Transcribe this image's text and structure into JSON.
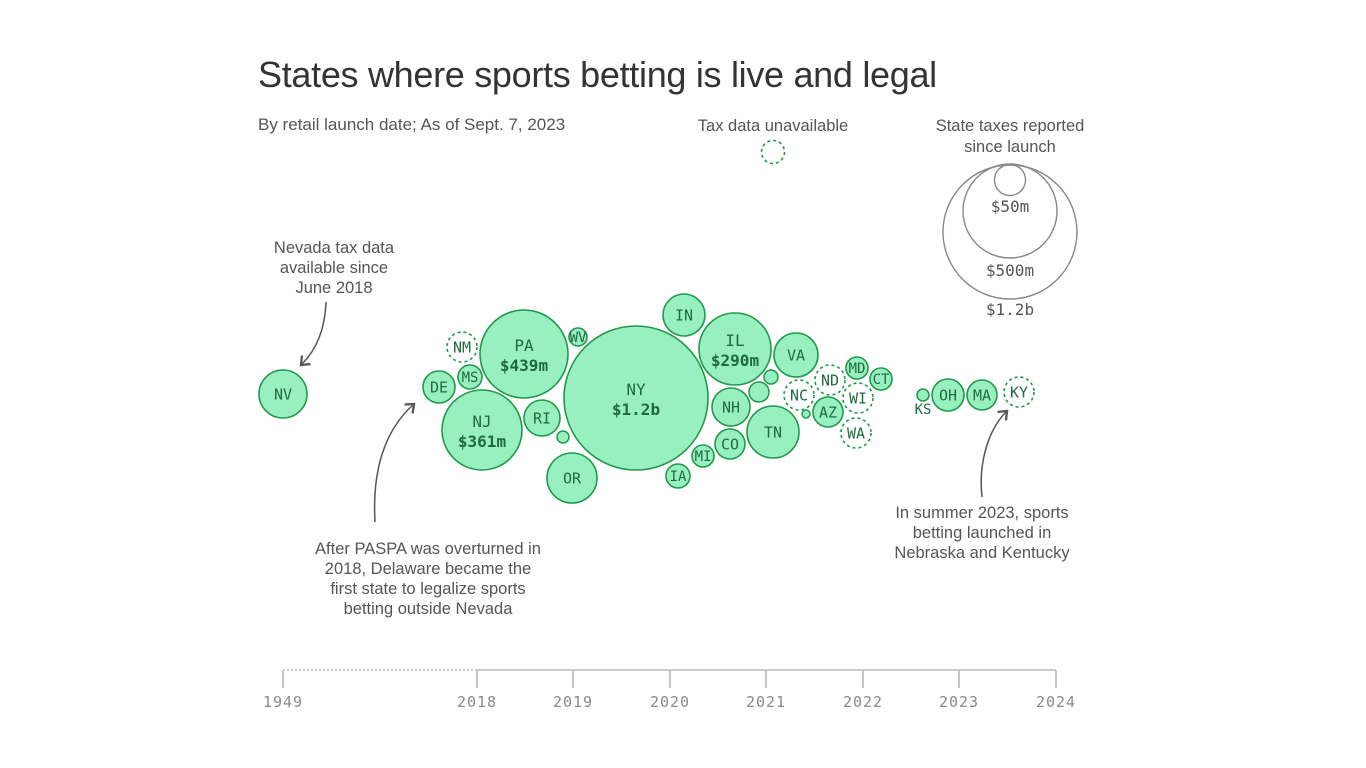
{
  "title": "States where sports betting is live and legal",
  "subtitle": "By retail launch date; As of Sept. 7, 2023",
  "legend": {
    "unavailable_label": "Tax data unavailable",
    "size_title_line1": "State taxes reported",
    "size_title_line2": "since launch",
    "size_values": [
      "$50m",
      "$500m",
      "$1.2b"
    ]
  },
  "annotations": {
    "nevada": [
      "Nevada tax data",
      "available since",
      "June 2018"
    ],
    "paspa": [
      "After PASPA was overturned in",
      "2018, Delaware became the",
      "first state to legalize sports",
      "betting outside Nevada"
    ],
    "summer": [
      "In summer 2023, sports",
      "betting launched in",
      "Nebraska and Kentucky"
    ]
  },
  "colors": {
    "fill": "#98efbf",
    "stroke": "#1e9a4a",
    "text": "#1f6b3e",
    "axis": "#bbbbbb",
    "annotation": "#555555"
  },
  "chart_data": {
    "type": "scatter",
    "title": "States where sports betting is live and legal",
    "subtitle": "By retail launch date; As of Sept. 7, 2023",
    "x_axis_ticks": [
      "1949",
      "2018",
      "2019",
      "2020",
      "2021",
      "2022",
      "2023",
      "2024"
    ],
    "size_encoding": "State taxes reported since launch",
    "size_legend_values": [
      "$50m",
      "$500m",
      "$1.2b"
    ],
    "points": [
      {
        "state": "NV",
        "label": "NV",
        "launch": 1949,
        "tax_data": true
      },
      {
        "state": "DE",
        "label": "DE",
        "launch": 2018.45,
        "tax_data": true
      },
      {
        "state": "NM",
        "label": "NM",
        "launch": 2018.8,
        "tax_data": false
      },
      {
        "state": "MS",
        "label": "MS",
        "launch": 2018.6,
        "tax_data": true
      },
      {
        "state": "NJ",
        "label": "NJ",
        "value_label": "$361m",
        "launch": 2018.5,
        "tax_data": true,
        "tax_m": 361
      },
      {
        "state": "PA",
        "label": "PA",
        "value_label": "$439m",
        "launch": 2018.9,
        "tax_data": true,
        "tax_m": 439
      },
      {
        "state": "WV",
        "label": "WV",
        "launch": 2018.7,
        "tax_data": true
      },
      {
        "state": "RI",
        "label": "RI",
        "launch": 2018.9,
        "tax_data": true
      },
      {
        "state": "OR",
        "label": "OR",
        "launch": 2019.6,
        "tax_data": true
      },
      {
        "state": "NY",
        "label": "NY",
        "value_label": "$1.2b",
        "launch": 2019.6,
        "tax_data": true,
        "tax_m": 1200
      },
      {
        "state": "IN",
        "label": "IN",
        "launch": 2019.7,
        "tax_data": true
      },
      {
        "state": "IA",
        "label": "IA",
        "launch": 2019.6,
        "tax_data": true
      },
      {
        "state": "MI",
        "label": "MI",
        "launch": 2020.2,
        "tax_data": true
      },
      {
        "state": "IL",
        "label": "IL",
        "value_label": "$290m",
        "launch": 2020.2,
        "tax_data": true,
        "tax_m": 290
      },
      {
        "state": "NH",
        "label": "NH",
        "launch": 2020.0,
        "tax_data": true
      },
      {
        "state": "CO",
        "label": "CO",
        "launch": 2020.4,
        "tax_data": true
      },
      {
        "state": "TN",
        "label": "TN",
        "launch": 2020.8,
        "tax_data": true
      },
      {
        "state": "VA",
        "label": "VA",
        "launch": 2021.1,
        "tax_data": true
      },
      {
        "state": "NC",
        "label": "NC",
        "launch": 2021.2,
        "tax_data": false
      },
      {
        "state": "ND",
        "label": "ND",
        "launch": 2021.5,
        "tax_data": false
      },
      {
        "state": "AZ",
        "label": "AZ",
        "launch": 2021.7,
        "tax_data": true
      },
      {
        "state": "WI",
        "label": "WI",
        "launch": 2021.9,
        "tax_data": false
      },
      {
        "state": "WA",
        "label": "WA",
        "launch": 2021.9,
        "tax_data": false
      },
      {
        "state": "MD",
        "label": "MD",
        "launch": 2021.9,
        "tax_data": true
      },
      {
        "state": "CT",
        "label": "CT",
        "launch": 2021.8,
        "tax_data": true
      },
      {
        "state": "KS",
        "label": "KS",
        "launch": 2022.7,
        "tax_data": true
      },
      {
        "state": "OH",
        "label": "OH",
        "launch": 2022.9,
        "tax_data": true
      },
      {
        "state": "MA",
        "label": "MA",
        "launch": 2023.2,
        "tax_data": true
      },
      {
        "state": "KY",
        "label": "KY",
        "launch": 2023.7,
        "tax_data": false
      }
    ]
  }
}
